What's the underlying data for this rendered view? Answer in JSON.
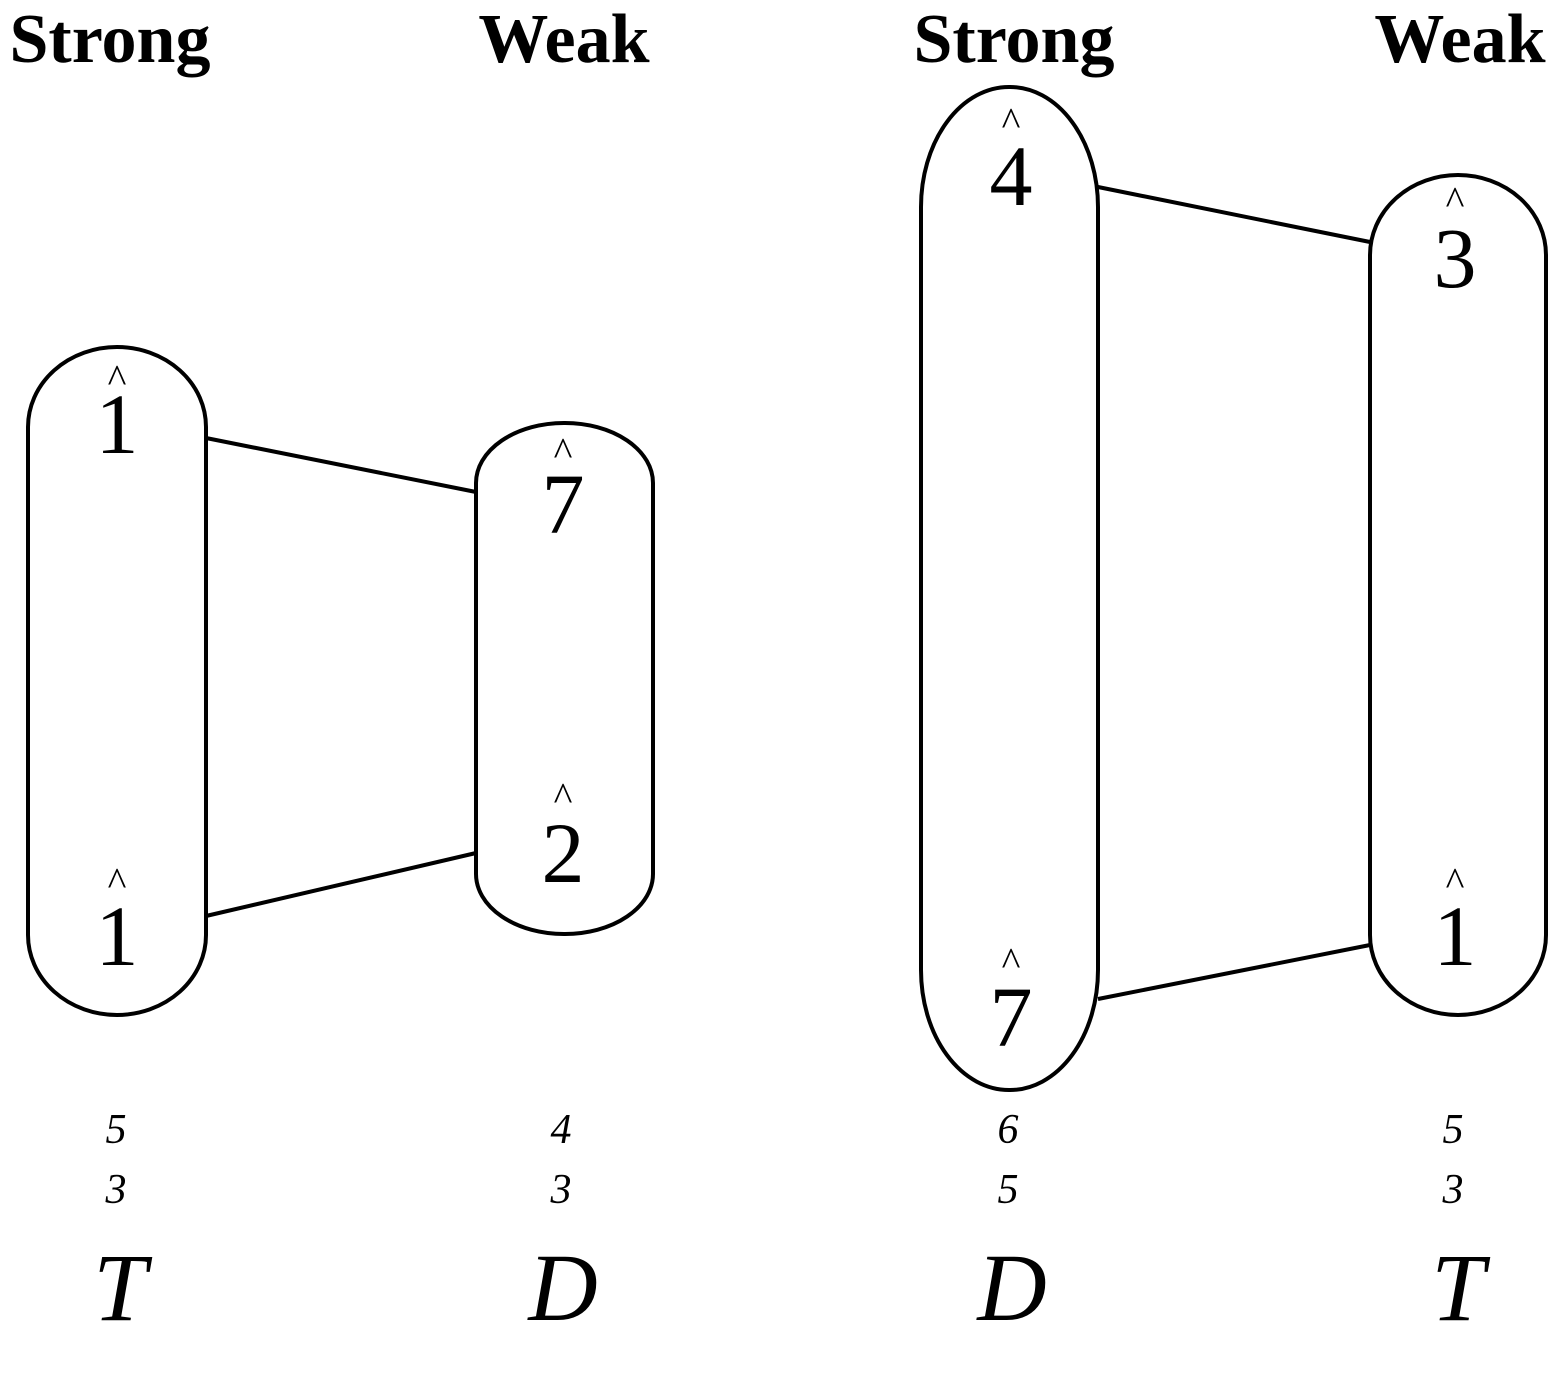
{
  "diagram": {
    "left": {
      "strong": {
        "header": "Strong",
        "top_degree": "1",
        "bottom_degree": "1",
        "figure_top": "5",
        "figure_bottom": "3",
        "function": "T"
      },
      "weak": {
        "header": "Weak",
        "top_degree": "7",
        "bottom_degree": "2",
        "figure_top": "4",
        "figure_bottom": "3",
        "function": "D"
      }
    },
    "right": {
      "strong": {
        "header": "Strong",
        "top_degree": "4",
        "bottom_degree": "7",
        "figure_top": "6",
        "figure_bottom": "5",
        "function": "D"
      },
      "weak": {
        "header": "Weak",
        "top_degree": "3",
        "bottom_degree": "1",
        "figure_top": "5",
        "figure_bottom": "3",
        "function": "T"
      }
    },
    "hat_symbol": "^"
  }
}
